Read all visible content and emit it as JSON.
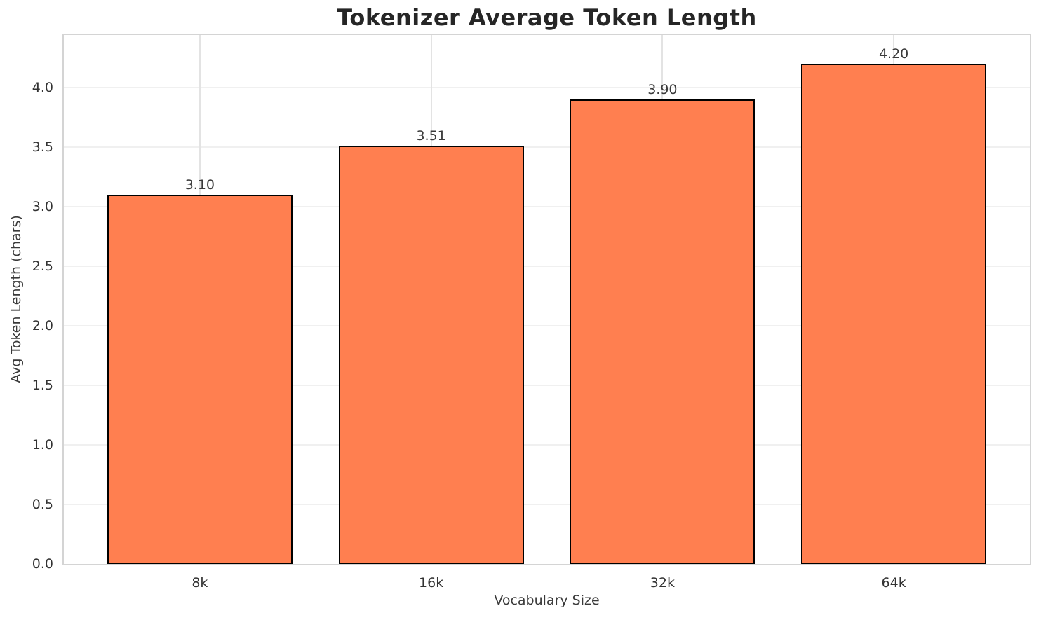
{
  "colors": {
    "background": "#FFFFFF",
    "bar_fill": "#FF7F50",
    "bar_edge": "#000000",
    "grid_horizontal": "#F0F0F0",
    "grid_vertical": "#E3E3E3",
    "spine": "#D4D4D4",
    "title_text": "#262626",
    "tick_text": "#333333",
    "label_text": "#3A3A3A"
  },
  "chart_data": {
    "type": "bar",
    "title": "Tokenizer Average Token Length",
    "xlabel": "Vocabulary Size",
    "ylabel": "Avg Token Length (chars)",
    "categories": [
      "8k",
      "16k",
      "32k",
      "64k"
    ],
    "values": [
      3.1,
      3.51,
      3.9,
      4.2
    ],
    "value_labels": [
      "3.10",
      "3.51",
      "3.90",
      "4.20"
    ],
    "yticks": [
      0.0,
      0.5,
      1.0,
      1.5,
      2.0,
      2.5,
      3.0,
      3.5,
      4.0
    ],
    "ytick_labels": [
      "0.0",
      "0.5",
      "1.0",
      "1.5",
      "2.0",
      "2.5",
      "3.0",
      "3.5",
      "4.0"
    ],
    "ylim": [
      0,
      4.44
    ],
    "bar_width_fraction": 0.8,
    "grid": true,
    "legend": false
  }
}
